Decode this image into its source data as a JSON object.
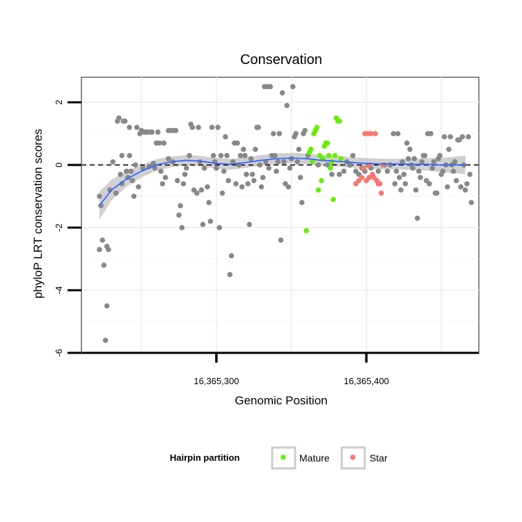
{
  "chart_data": {
    "type": "scatter",
    "title": "Conservation",
    "xlabel": "Genomic Position",
    "ylabel": "phyloP LRT conservation scores",
    "xlim": [
      16365210,
      16365475
    ],
    "ylim": [
      -6,
      2.8
    ],
    "x_ticks": [
      16365300,
      16365400
    ],
    "x_tick_labels": [
      "16,365,300",
      "16,365,400"
    ],
    "y_ticks": [
      -6,
      -4,
      -2,
      0,
      2
    ],
    "y_tick_labels": [
      "-6",
      "-4",
      "-2",
      "0",
      "2"
    ],
    "reference_line": {
      "y": 0,
      "style": "dashed"
    },
    "legend": {
      "title": "Hairpin partition",
      "position": "bottom",
      "entries": [
        {
          "label": "Mature",
          "color": "#66ee00"
        },
        {
          "label": "Star",
          "color": "#f8766d"
        }
      ]
    },
    "colors": {
      "other": "#888888",
      "mature": "#66ee00",
      "star": "#f8766d",
      "smooth": "#3366ff",
      "band": "#c8c8c8"
    },
    "smooth": {
      "x": [
        16365222,
        16365230,
        16365240,
        16365250,
        16365260,
        16365270,
        16365280,
        16365290,
        16365300,
        16365310,
        16365320,
        16365330,
        16365340,
        16365350,
        16365360,
        16365370,
        16365380,
        16365390,
        16365400,
        16365410,
        16365420,
        16365430,
        16365440,
        16365450,
        16365460,
        16365466
      ],
      "y": [
        -1.3,
        -0.8,
        -0.45,
        -0.2,
        0.0,
        0.1,
        0.15,
        0.12,
        0.05,
        0.02,
        0.08,
        0.15,
        0.2,
        0.22,
        0.2,
        0.15,
        0.12,
        0.08,
        0.05,
        0.03,
        0.03,
        0.02,
        0.02,
        0.0,
        0.0,
        0.0
      ],
      "ci": [
        0.45,
        0.33,
        0.25,
        0.2,
        0.18,
        0.17,
        0.17,
        0.17,
        0.17,
        0.17,
        0.17,
        0.17,
        0.17,
        0.17,
        0.17,
        0.17,
        0.17,
        0.17,
        0.17,
        0.17,
        0.17,
        0.18,
        0.2,
        0.23,
        0.27,
        0.3
      ]
    },
    "series": [
      {
        "name": "Other",
        "points": [
          [
            16365222,
            -1.0
          ],
          [
            16365223,
            -1.3
          ],
          [
            16365222,
            -2.7
          ],
          [
            16365224,
            -2.4
          ],
          [
            16365225,
            -3.2
          ],
          [
            16365227,
            -4.5
          ],
          [
            16365227,
            -2.6
          ],
          [
            16365228,
            -2.7
          ],
          [
            16365226,
            -5.6
          ],
          [
            16365229,
            -0.8
          ],
          [
            16365231,
            0.1
          ],
          [
            16365233,
            -0.9
          ],
          [
            16365234,
            1.4
          ],
          [
            16365235,
            1.5
          ],
          [
            16365236,
            -0.3
          ],
          [
            16365237,
            0.3
          ],
          [
            16365237,
            -0.6
          ],
          [
            16365238,
            1.4
          ],
          [
            16365239,
            1.4
          ],
          [
            16365240,
            -0.2
          ],
          [
            16365241,
            -0.4
          ],
          [
            16365242,
            1.2
          ],
          [
            16365242,
            0.3
          ],
          [
            16365243,
            -0.2
          ],
          [
            16365244,
            -0.5
          ],
          [
            16365245,
            -1.0
          ],
          [
            16365246,
            0.0
          ],
          [
            16365247,
            1.2
          ],
          [
            16365248,
            -0.7
          ],
          [
            16365249,
            1.0
          ],
          [
            16365250,
            1.1
          ],
          [
            16365251,
            -0.1
          ],
          [
            16365252,
            1.05
          ],
          [
            16365253,
            1.05
          ],
          [
            16365254,
            1.05
          ],
          [
            16365255,
            -0.05
          ],
          [
            16365256,
            1.05
          ],
          [
            16365257,
            1.05
          ],
          [
            16365258,
            0.05
          ],
          [
            16365259,
            -0.1
          ],
          [
            16365260,
            0.7
          ],
          [
            16365261,
            1.05
          ],
          [
            16365262,
            0.7
          ],
          [
            16365263,
            -0.2
          ],
          [
            16365264,
            -0.6
          ],
          [
            16365265,
            0.7
          ],
          [
            16365266,
            -0.4
          ],
          [
            16365268,
            0.2
          ],
          [
            16365268,
            1.1
          ],
          [
            16365270,
            1.1
          ],
          [
            16365271,
            0.1
          ],
          [
            16365272,
            1.1
          ],
          [
            16365273,
            1.1
          ],
          [
            16365274,
            -0.5
          ],
          [
            16365275,
            -1.6
          ],
          [
            16365276,
            -1.3
          ],
          [
            16365277,
            -2.0
          ],
          [
            16365278,
            -0.6
          ],
          [
            16365279,
            -0.3
          ],
          [
            16365280,
            -0.1
          ],
          [
            16365282,
            0.3
          ],
          [
            16365283,
            1.3
          ],
          [
            16365284,
            1.2
          ],
          [
            16365285,
            -0.8
          ],
          [
            16365287,
            -0.9
          ],
          [
            16365288,
            1.2
          ],
          [
            16365289,
            0.1
          ],
          [
            16365290,
            -0.8
          ],
          [
            16365291,
            -1.9
          ],
          [
            16365292,
            -0.1
          ],
          [
            16365294,
            -0.7
          ],
          [
            16365295,
            -1.2
          ],
          [
            16365296,
            -1.8
          ],
          [
            16365297,
            1.2
          ],
          [
            16365298,
            0.3
          ],
          [
            16365299,
            0.1
          ],
          [
            16365300,
            -0.1
          ],
          [
            16365301,
            1.2
          ],
          [
            16365302,
            -2.0
          ],
          [
            16365303,
            0.3
          ],
          [
            16365304,
            -0.9
          ],
          [
            16365305,
            -0.2
          ],
          [
            16365306,
            0.9
          ],
          [
            16365307,
            0.3
          ],
          [
            16365308,
            -0.5
          ],
          [
            16365309,
            -3.5
          ],
          [
            16365310,
            -2.9
          ],
          [
            16365311,
            0.1
          ],
          [
            16365312,
            0.7
          ],
          [
            16365313,
            -0.6
          ],
          [
            16365314,
            0.7
          ],
          [
            16365315,
            0.0
          ],
          [
            16365316,
            0.3
          ],
          [
            16365317,
            -0.7
          ],
          [
            16365318,
            0.5
          ],
          [
            16365319,
            0.3
          ],
          [
            16365320,
            -0.3
          ],
          [
            16365321,
            -0.6
          ],
          [
            16365322,
            -1.9
          ],
          [
            16365323,
            0.2
          ],
          [
            16365324,
            -0.3
          ],
          [
            16365325,
            -0.5
          ],
          [
            16365326,
            0.5
          ],
          [
            16365327,
            1.2
          ],
          [
            16365328,
            1.2
          ],
          [
            16365329,
            0.0
          ],
          [
            16365330,
            -0.7
          ],
          [
            16365331,
            -0.4
          ],
          [
            16365332,
            2.5
          ],
          [
            16365333,
            0.1
          ],
          [
            16365334,
            2.5
          ],
          [
            16365335,
            -0.1
          ],
          [
            16365336,
            2.5
          ],
          [
            16365337,
            0.3
          ],
          [
            16365338,
            1.0
          ],
          [
            16365339,
            0.3
          ],
          [
            16365340,
            -0.2
          ],
          [
            16365341,
            0.1
          ],
          [
            16365342,
            1.0
          ],
          [
            16365343,
            -2.4
          ],
          [
            16365344,
            2.3
          ],
          [
            16365345,
            0.1
          ],
          [
            16365346,
            -0.6
          ],
          [
            16365347,
            1.9
          ],
          [
            16365348,
            -0.7
          ],
          [
            16365349,
            -0.1
          ],
          [
            16365350,
            0.2
          ],
          [
            16365351,
            2.5
          ],
          [
            16365352,
            0.9
          ],
          [
            16365353,
            1.0
          ],
          [
            16365354,
            0.1
          ],
          [
            16365355,
            0.5
          ],
          [
            16365356,
            -0.4
          ],
          [
            16365357,
            -1.2
          ],
          [
            16365358,
            1.0
          ],
          [
            16365359,
            1.1
          ],
          [
            16365361,
            0.3
          ],
          [
            16365368,
            0.0
          ],
          [
            16365374,
            0.0
          ],
          [
            16365377,
            -0.3
          ],
          [
            16365382,
            -0.3
          ],
          [
            16365385,
            -0.2
          ],
          [
            16365387,
            0.1
          ],
          [
            16365389,
            0.0
          ],
          [
            16365391,
            0.3
          ],
          [
            16365393,
            -0.2
          ],
          [
            16365395,
            -0.3
          ],
          [
            16365397,
            -0.1
          ],
          [
            16365399,
            -0.2
          ],
          [
            16365401,
            0.0
          ],
          [
            16365403,
            -0.1
          ],
          [
            16365408,
            -0.2
          ],
          [
            16365412,
            0.0
          ],
          [
            16365414,
            -0.2
          ],
          [
            16365416,
            0.0
          ],
          [
            16365418,
            1.0
          ],
          [
            16365419,
            -0.6
          ],
          [
            16365420,
            -0.2
          ],
          [
            16365421,
            1.0
          ],
          [
            16365422,
            -0.4
          ],
          [
            16365423,
            -0.8
          ],
          [
            16365424,
            0.1
          ],
          [
            16365425,
            -0.3
          ],
          [
            16365426,
            -0.6
          ],
          [
            16365427,
            0.7
          ],
          [
            16365428,
            0.2
          ],
          [
            16365429,
            0.5
          ],
          [
            16365430,
            0.0
          ],
          [
            16365431,
            -0.1
          ],
          [
            16365432,
            0.2
          ],
          [
            16365433,
            -0.8
          ],
          [
            16365434,
            -1.7
          ],
          [
            16365435,
            -0.2
          ],
          [
            16365436,
            -0.4
          ],
          [
            16365437,
            0.1
          ],
          [
            16365438,
            0.3
          ],
          [
            16365439,
            0.3
          ],
          [
            16365440,
            -0.5
          ],
          [
            16365441,
            1.0
          ],
          [
            16365442,
            -0.6
          ],
          [
            16365443,
            1.0
          ],
          [
            16365444,
            -0.1
          ],
          [
            16365445,
            0.1
          ],
          [
            16365446,
            -0.9
          ],
          [
            16365447,
            -0.9
          ],
          [
            16365448,
            0.2
          ],
          [
            16365449,
            0.3
          ],
          [
            16365450,
            -0.3
          ],
          [
            16365451,
            -0.2
          ],
          [
            16365452,
            0.9
          ],
          [
            16365453,
            0.0
          ],
          [
            16365454,
            -0.7
          ],
          [
            16365455,
            0.5
          ],
          [
            16365456,
            0.9
          ],
          [
            16365457,
            0.0
          ],
          [
            16365458,
            -0.2
          ],
          [
            16365459,
            0.1
          ],
          [
            16365460,
            -0.5
          ],
          [
            16365461,
            0.8
          ],
          [
            16365462,
            0.8
          ],
          [
            16365463,
            -0.7
          ],
          [
            16365464,
            0.9
          ],
          [
            16365465,
            0.0
          ],
          [
            16365466,
            -0.8
          ],
          [
            16365467,
            -0.6
          ],
          [
            16365468,
            0.9
          ],
          [
            16365469,
            -0.3
          ],
          [
            16365470,
            -1.2
          ]
        ]
      },
      {
        "name": "Mature",
        "points": [
          [
            16365360,
            -2.1
          ],
          [
            16365362,
            0.4
          ],
          [
            16365363,
            0.5
          ],
          [
            16365364,
            0.1
          ],
          [
            16365365,
            1.0
          ],
          [
            16365366,
            1.1
          ],
          [
            16365367,
            1.2
          ],
          [
            16365368,
            -0.8
          ],
          [
            16365369,
            0.3
          ],
          [
            16365370,
            -0.5
          ],
          [
            16365371,
            0.2
          ],
          [
            16365372,
            0.6
          ],
          [
            16365373,
            0.7
          ],
          [
            16365374,
            0.7
          ],
          [
            16365375,
            0.3
          ],
          [
            16365376,
            -0.1
          ],
          [
            16365377,
            0.1
          ],
          [
            16365378,
            -1.1
          ],
          [
            16365379,
            0.3
          ],
          [
            16365380,
            1.5
          ],
          [
            16365381,
            1.4
          ],
          [
            16365382,
            1.4
          ],
          [
            16365383,
            0.2
          ]
        ]
      },
      {
        "name": "Star",
        "points": [
          [
            16365393,
            -0.6
          ],
          [
            16365395,
            -0.5
          ],
          [
            16365397,
            -0.4
          ],
          [
            16365399,
            1.0
          ],
          [
            16365400,
            -0.5
          ],
          [
            16365401,
            1.0
          ],
          [
            16365402,
            -0.4
          ],
          [
            16365403,
            1.0
          ],
          [
            16365404,
            -0.3
          ],
          [
            16365405,
            -0.4
          ],
          [
            16365406,
            1.0
          ],
          [
            16365407,
            -0.5
          ],
          [
            16365408,
            -0.6
          ],
          [
            16365409,
            -0.6
          ],
          [
            16365410,
            -0.9
          ],
          [
            16365411,
            0.0
          ],
          [
            16365402,
            0.0
          ],
          [
            16365398,
            -0.1
          ]
        ]
      }
    ]
  }
}
